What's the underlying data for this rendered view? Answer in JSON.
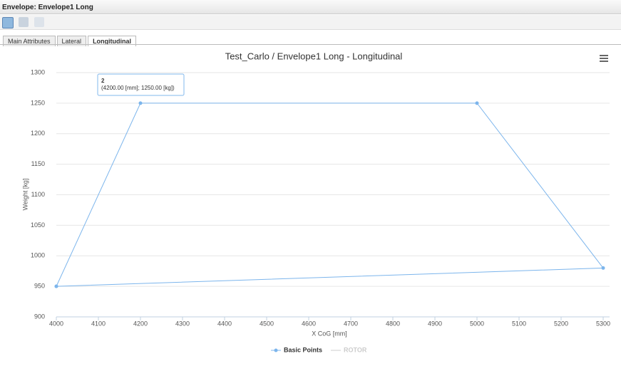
{
  "window": {
    "title": "Envelope: Envelope1 Long"
  },
  "tabs": [
    "Main Attributes",
    "Lateral",
    "Longitudinal"
  ],
  "active_tab": 2,
  "chart_data": {
    "type": "line",
    "title": "Test_Carlo / Envelope1 Long - Longitudinal",
    "x_label": "X CoG [mm]",
    "y_label": "Weight [kg]",
    "xlim": [
      4000,
      5300
    ],
    "ylim": [
      900,
      1300
    ],
    "xticks": [
      4000,
      4100,
      4200,
      4300,
      4400,
      4500,
      4600,
      4700,
      4800,
      4900,
      5000,
      5100,
      5200,
      5300
    ],
    "yticks": [
      900,
      950,
      1000,
      1050,
      1100,
      1150,
      1200,
      1250,
      1300
    ],
    "grid": true,
    "series": [
      {
        "name": "Basic Points",
        "color": "#7cb5ec",
        "x": [
          4000,
          4200,
          5000,
          5300,
          4000
        ],
        "values": [
          950,
          1250,
          1250,
          980,
          950
        ]
      },
      {
        "name": "ROTOR",
        "color": "#cccccc",
        "x": [],
        "values": []
      }
    ],
    "tooltip": {
      "title": "2",
      "text": "(4200.00 [mm]; 1250.00 [kg])"
    }
  }
}
